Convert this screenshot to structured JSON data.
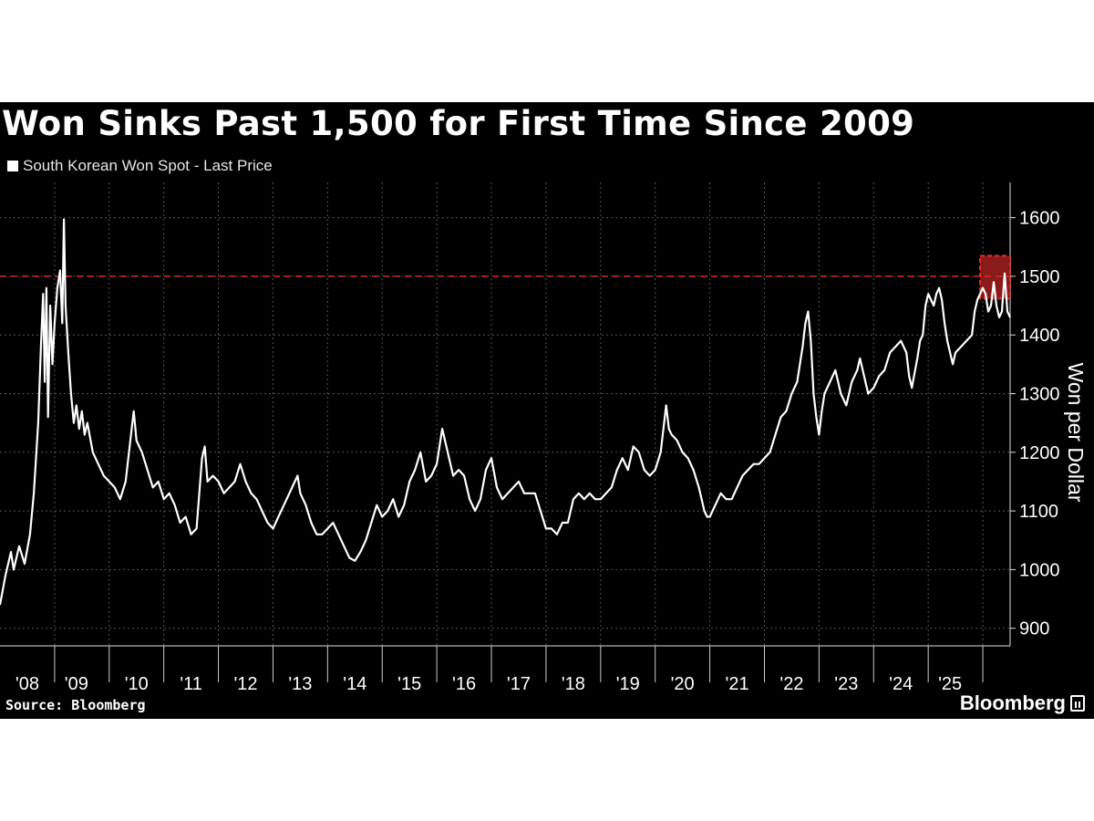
{
  "chart_data": {
    "type": "line",
    "title": "Won Sinks Past 1,500 for First Time Since 2009",
    "series": [
      {
        "name": "South Korean Won Spot - Last Price",
        "color": "#ffffff",
        "points": [
          [
            2008.0,
            940
          ],
          [
            2008.1,
            990
          ],
          [
            2008.2,
            1030
          ],
          [
            2008.25,
            1000
          ],
          [
            2008.35,
            1040
          ],
          [
            2008.45,
            1010
          ],
          [
            2008.55,
            1060
          ],
          [
            2008.62,
            1130
          ],
          [
            2008.7,
            1250
          ],
          [
            2008.75,
            1380
          ],
          [
            2008.79,
            1470
          ],
          [
            2008.82,
            1320
          ],
          [
            2008.85,
            1480
          ],
          [
            2008.88,
            1260
          ],
          [
            2008.92,
            1450
          ],
          [
            2008.96,
            1350
          ],
          [
            2009.0,
            1420
          ],
          [
            2009.05,
            1480
          ],
          [
            2009.1,
            1510
          ],
          [
            2009.14,
            1420
          ],
          [
            2009.17,
            1597
          ],
          [
            2009.2,
            1450
          ],
          [
            2009.25,
            1370
          ],
          [
            2009.3,
            1300
          ],
          [
            2009.35,
            1250
          ],
          [
            2009.4,
            1280
          ],
          [
            2009.45,
            1240
          ],
          [
            2009.5,
            1270
          ],
          [
            2009.55,
            1230
          ],
          [
            2009.6,
            1250
          ],
          [
            2009.7,
            1200
          ],
          [
            2009.8,
            1180
          ],
          [
            2009.9,
            1160
          ],
          [
            2010.0,
            1150
          ],
          [
            2010.1,
            1140
          ],
          [
            2010.2,
            1120
          ],
          [
            2010.3,
            1150
          ],
          [
            2010.4,
            1230
          ],
          [
            2010.45,
            1270
          ],
          [
            2010.5,
            1220
          ],
          [
            2010.6,
            1200
          ],
          [
            2010.7,
            1170
          ],
          [
            2010.8,
            1140
          ],
          [
            2010.9,
            1150
          ],
          [
            2011.0,
            1120
          ],
          [
            2011.1,
            1130
          ],
          [
            2011.2,
            1110
          ],
          [
            2011.3,
            1080
          ],
          [
            2011.4,
            1090
          ],
          [
            2011.5,
            1060
          ],
          [
            2011.6,
            1070
          ],
          [
            2011.7,
            1190
          ],
          [
            2011.75,
            1210
          ],
          [
            2011.8,
            1150
          ],
          [
            2011.9,
            1160
          ],
          [
            2012.0,
            1150
          ],
          [
            2012.1,
            1130
          ],
          [
            2012.2,
            1140
          ],
          [
            2012.3,
            1150
          ],
          [
            2012.4,
            1180
          ],
          [
            2012.5,
            1150
          ],
          [
            2012.6,
            1130
          ],
          [
            2012.7,
            1120
          ],
          [
            2012.8,
            1100
          ],
          [
            2012.9,
            1080
          ],
          [
            2013.0,
            1070
          ],
          [
            2013.1,
            1090
          ],
          [
            2013.2,
            1110
          ],
          [
            2013.3,
            1130
          ],
          [
            2013.4,
            1150
          ],
          [
            2013.45,
            1160
          ],
          [
            2013.5,
            1130
          ],
          [
            2013.6,
            1110
          ],
          [
            2013.7,
            1080
          ],
          [
            2013.8,
            1060
          ],
          [
            2013.9,
            1060
          ],
          [
            2014.0,
            1070
          ],
          [
            2014.1,
            1080
          ],
          [
            2014.2,
            1060
          ],
          [
            2014.3,
            1040
          ],
          [
            2014.4,
            1020
          ],
          [
            2014.5,
            1015
          ],
          [
            2014.6,
            1030
          ],
          [
            2014.7,
            1050
          ],
          [
            2014.8,
            1080
          ],
          [
            2014.9,
            1110
          ],
          [
            2015.0,
            1090
          ],
          [
            2015.1,
            1100
          ],
          [
            2015.2,
            1120
          ],
          [
            2015.3,
            1090
          ],
          [
            2015.4,
            1110
          ],
          [
            2015.5,
            1150
          ],
          [
            2015.6,
            1170
          ],
          [
            2015.7,
            1200
          ],
          [
            2015.8,
            1150
          ],
          [
            2015.9,
            1160
          ],
          [
            2016.0,
            1180
          ],
          [
            2016.05,
            1210
          ],
          [
            2016.1,
            1240
          ],
          [
            2016.2,
            1200
          ],
          [
            2016.3,
            1160
          ],
          [
            2016.4,
            1170
          ],
          [
            2016.5,
            1160
          ],
          [
            2016.6,
            1120
          ],
          [
            2016.7,
            1100
          ],
          [
            2016.8,
            1120
          ],
          [
            2016.9,
            1170
          ],
          [
            2017.0,
            1190
          ],
          [
            2017.1,
            1140
          ],
          [
            2017.2,
            1120
          ],
          [
            2017.3,
            1130
          ],
          [
            2017.4,
            1140
          ],
          [
            2017.5,
            1150
          ],
          [
            2017.6,
            1130
          ],
          [
            2017.7,
            1130
          ],
          [
            2017.8,
            1130
          ],
          [
            2017.9,
            1100
          ],
          [
            2018.0,
            1070
          ],
          [
            2018.1,
            1070
          ],
          [
            2018.2,
            1060
          ],
          [
            2018.3,
            1080
          ],
          [
            2018.4,
            1080
          ],
          [
            2018.5,
            1120
          ],
          [
            2018.6,
            1130
          ],
          [
            2018.7,
            1120
          ],
          [
            2018.8,
            1130
          ],
          [
            2018.9,
            1120
          ],
          [
            2019.0,
            1120
          ],
          [
            2019.1,
            1130
          ],
          [
            2019.2,
            1140
          ],
          [
            2019.3,
            1170
          ],
          [
            2019.4,
            1190
          ],
          [
            2019.5,
            1170
          ],
          [
            2019.6,
            1210
          ],
          [
            2019.7,
            1200
          ],
          [
            2019.8,
            1170
          ],
          [
            2019.9,
            1160
          ],
          [
            2020.0,
            1170
          ],
          [
            2020.1,
            1200
          ],
          [
            2020.2,
            1280
          ],
          [
            2020.25,
            1240
          ],
          [
            2020.3,
            1230
          ],
          [
            2020.4,
            1220
          ],
          [
            2020.5,
            1200
          ],
          [
            2020.6,
            1190
          ],
          [
            2020.7,
            1170
          ],
          [
            2020.8,
            1140
          ],
          [
            2020.9,
            1100
          ],
          [
            2020.95,
            1090
          ],
          [
            2021.0,
            1090
          ],
          [
            2021.1,
            1110
          ],
          [
            2021.2,
            1130
          ],
          [
            2021.3,
            1120
          ],
          [
            2021.4,
            1120
          ],
          [
            2021.5,
            1140
          ],
          [
            2021.6,
            1160
          ],
          [
            2021.7,
            1170
          ],
          [
            2021.8,
            1180
          ],
          [
            2021.9,
            1180
          ],
          [
            2022.0,
            1190
          ],
          [
            2022.1,
            1200
          ],
          [
            2022.2,
            1230
          ],
          [
            2022.3,
            1260
          ],
          [
            2022.4,
            1270
          ],
          [
            2022.5,
            1300
          ],
          [
            2022.6,
            1320
          ],
          [
            2022.7,
            1380
          ],
          [
            2022.75,
            1420
          ],
          [
            2022.8,
            1440
          ],
          [
            2022.85,
            1390
          ],
          [
            2022.9,
            1300
          ],
          [
            2022.95,
            1260
          ],
          [
            2023.0,
            1230
          ],
          [
            2023.05,
            1270
          ],
          [
            2023.1,
            1300
          ],
          [
            2023.2,
            1320
          ],
          [
            2023.3,
            1340
          ],
          [
            2023.4,
            1300
          ],
          [
            2023.5,
            1280
          ],
          [
            2023.6,
            1320
          ],
          [
            2023.7,
            1340
          ],
          [
            2023.75,
            1360
          ],
          [
            2023.8,
            1340
          ],
          [
            2023.9,
            1300
          ],
          [
            2024.0,
            1310
          ],
          [
            2024.1,
            1330
          ],
          [
            2024.2,
            1340
          ],
          [
            2024.3,
            1370
          ],
          [
            2024.4,
            1380
          ],
          [
            2024.5,
            1390
          ],
          [
            2024.6,
            1370
          ],
          [
            2024.65,
            1330
          ],
          [
            2024.7,
            1310
          ],
          [
            2024.8,
            1360
          ],
          [
            2024.85,
            1390
          ],
          [
            2024.9,
            1400
          ],
          [
            2024.95,
            1450
          ],
          [
            2025.0,
            1470
          ],
          [
            2025.05,
            1460
          ],
          [
            2025.1,
            1450
          ],
          [
            2025.15,
            1470
          ],
          [
            2025.2,
            1480
          ],
          [
            2025.25,
            1460
          ],
          [
            2025.3,
            1420
          ],
          [
            2025.35,
            1390
          ],
          [
            2025.4,
            1370
          ],
          [
            2025.45,
            1350
          ],
          [
            2025.5,
            1370
          ],
          [
            2025.6,
            1380
          ],
          [
            2025.7,
            1390
          ],
          [
            2025.8,
            1400
          ],
          [
            2025.85,
            1440
          ],
          [
            2025.9,
            1460
          ],
          [
            2025.95,
            1470
          ],
          [
            2026.0,
            1480
          ],
          [
            2026.05,
            1470
          ],
          [
            2026.1,
            1440
          ],
          [
            2026.15,
            1450
          ],
          [
            2026.2,
            1490
          ],
          [
            2026.25,
            1450
          ],
          [
            2026.3,
            1430
          ],
          [
            2026.35,
            1440
          ],
          [
            2026.4,
            1505
          ],
          [
            2026.45,
            1440
          ],
          [
            2026.5,
            1430
          ]
        ]
      }
    ],
    "xlabel": "",
    "ylabel": "Won per Dollar",
    "xlim": [
      2008,
      2026.5
    ],
    "ylim": [
      870,
      1660
    ],
    "yticks": [
      900,
      1000,
      1100,
      1200,
      1300,
      1400,
      1500,
      1600
    ],
    "xticks": [
      {
        "label": "'08",
        "at": 2008.5
      },
      {
        "label": "'09",
        "at": 2009.4
      },
      {
        "label": "'10",
        "at": 2010.5
      },
      {
        "label": "'11",
        "at": 2011.5
      },
      {
        "label": "'12",
        "at": 2012.5
      },
      {
        "label": "'13",
        "at": 2013.5
      },
      {
        "label": "'14",
        "at": 2014.5
      },
      {
        "label": "'15",
        "at": 2015.5
      },
      {
        "label": "'16",
        "at": 2016.5
      },
      {
        "label": "'17",
        "at": 2017.5
      },
      {
        "label": "'18",
        "at": 2018.5
      },
      {
        "label": "'19",
        "at": 2019.5
      },
      {
        "label": "'20",
        "at": 2020.5
      },
      {
        "label": "'21",
        "at": 2021.5
      },
      {
        "label": "'22",
        "at": 2022.5
      },
      {
        "label": "'23",
        "at": 2023.5
      },
      {
        "label": "'24",
        "at": 2024.5
      },
      {
        "label": "'25",
        "at": 2025.4
      }
    ],
    "year_boundaries": [
      2009,
      2010,
      2011,
      2012,
      2013,
      2014,
      2015,
      2016,
      2017,
      2018,
      2019,
      2020,
      2021,
      2022,
      2023,
      2024,
      2025,
      2026
    ],
    "reference_line": {
      "value": 1500,
      "color": "#d62b2b"
    },
    "highlight_box": {
      "x_range": [
        2025.95,
        2026.5
      ],
      "y_range": [
        1462,
        1535
      ],
      "color": "#8b1a1a"
    },
    "grid": true,
    "legend_position": "top-left"
  },
  "header": {
    "title": "Won Sinks Past 1,500 for First Time Since 2009",
    "legend_label": "South Korean Won Spot - Last Price"
  },
  "footer": {
    "source": "Source: Bloomberg",
    "brand": "Bloomberg"
  }
}
